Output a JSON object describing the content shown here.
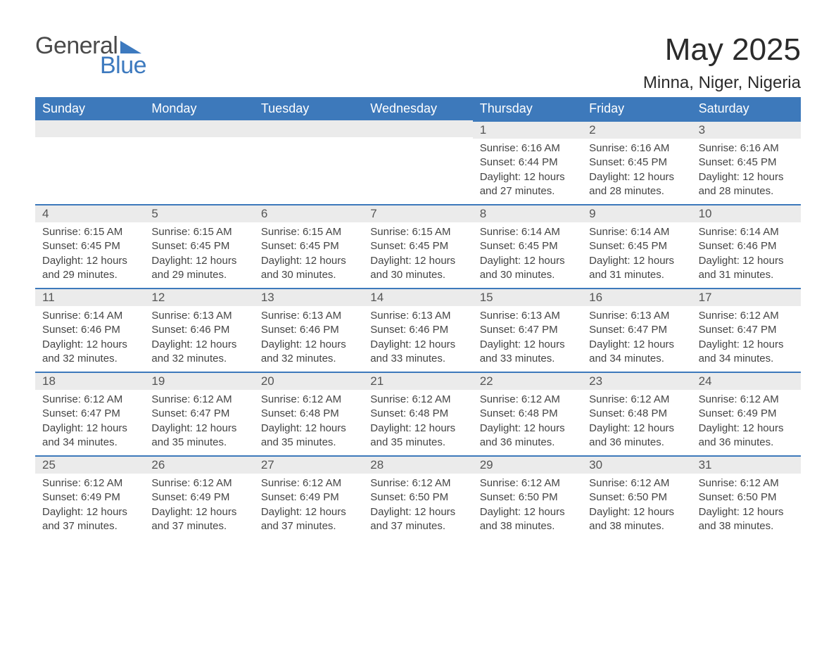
{
  "brand": {
    "word1": "General",
    "word2": "Blue"
  },
  "header": {
    "month_title": "May 2025",
    "location": "Minna, Niger, Nigeria"
  },
  "labels": {
    "sunrise_prefix": "Sunrise: ",
    "sunset_prefix": "Sunset: ",
    "daylight_prefix": "Daylight: ",
    "daylight_join": " and ",
    "daylight_suffix": "."
  },
  "styling": {
    "header_bg": "#3d79bb",
    "header_text": "#ffffff",
    "strip_bg": "#ebebeb",
    "accent_border": "#3d79bb",
    "body_text": "#444444",
    "daynum_text": "#555555",
    "title_text": "#2b2b2b",
    "font_family": "Arial",
    "columns": 7
  },
  "dow": [
    "Sunday",
    "Monday",
    "Tuesday",
    "Wednesday",
    "Thursday",
    "Friday",
    "Saturday"
  ],
  "weeks": [
    [
      null,
      null,
      null,
      null,
      {
        "n": "1",
        "sr": "6:16 AM",
        "ss": "6:44 PM",
        "dh": "12 hours",
        "dm": "27 minutes"
      },
      {
        "n": "2",
        "sr": "6:16 AM",
        "ss": "6:45 PM",
        "dh": "12 hours",
        "dm": "28 minutes"
      },
      {
        "n": "3",
        "sr": "6:16 AM",
        "ss": "6:45 PM",
        "dh": "12 hours",
        "dm": "28 minutes"
      }
    ],
    [
      {
        "n": "4",
        "sr": "6:15 AM",
        "ss": "6:45 PM",
        "dh": "12 hours",
        "dm": "29 minutes"
      },
      {
        "n": "5",
        "sr": "6:15 AM",
        "ss": "6:45 PM",
        "dh": "12 hours",
        "dm": "29 minutes"
      },
      {
        "n": "6",
        "sr": "6:15 AM",
        "ss": "6:45 PM",
        "dh": "12 hours",
        "dm": "30 minutes"
      },
      {
        "n": "7",
        "sr": "6:15 AM",
        "ss": "6:45 PM",
        "dh": "12 hours",
        "dm": "30 minutes"
      },
      {
        "n": "8",
        "sr": "6:14 AM",
        "ss": "6:45 PM",
        "dh": "12 hours",
        "dm": "30 minutes"
      },
      {
        "n": "9",
        "sr": "6:14 AM",
        "ss": "6:45 PM",
        "dh": "12 hours",
        "dm": "31 minutes"
      },
      {
        "n": "10",
        "sr": "6:14 AM",
        "ss": "6:46 PM",
        "dh": "12 hours",
        "dm": "31 minutes"
      }
    ],
    [
      {
        "n": "11",
        "sr": "6:14 AM",
        "ss": "6:46 PM",
        "dh": "12 hours",
        "dm": "32 minutes"
      },
      {
        "n": "12",
        "sr": "6:13 AM",
        "ss": "6:46 PM",
        "dh": "12 hours",
        "dm": "32 minutes"
      },
      {
        "n": "13",
        "sr": "6:13 AM",
        "ss": "6:46 PM",
        "dh": "12 hours",
        "dm": "32 minutes"
      },
      {
        "n": "14",
        "sr": "6:13 AM",
        "ss": "6:46 PM",
        "dh": "12 hours",
        "dm": "33 minutes"
      },
      {
        "n": "15",
        "sr": "6:13 AM",
        "ss": "6:47 PM",
        "dh": "12 hours",
        "dm": "33 minutes"
      },
      {
        "n": "16",
        "sr": "6:13 AM",
        "ss": "6:47 PM",
        "dh": "12 hours",
        "dm": "34 minutes"
      },
      {
        "n": "17",
        "sr": "6:12 AM",
        "ss": "6:47 PM",
        "dh": "12 hours",
        "dm": "34 minutes"
      }
    ],
    [
      {
        "n": "18",
        "sr": "6:12 AM",
        "ss": "6:47 PM",
        "dh": "12 hours",
        "dm": "34 minutes"
      },
      {
        "n": "19",
        "sr": "6:12 AM",
        "ss": "6:47 PM",
        "dh": "12 hours",
        "dm": "35 minutes"
      },
      {
        "n": "20",
        "sr": "6:12 AM",
        "ss": "6:48 PM",
        "dh": "12 hours",
        "dm": "35 minutes"
      },
      {
        "n": "21",
        "sr": "6:12 AM",
        "ss": "6:48 PM",
        "dh": "12 hours",
        "dm": "35 minutes"
      },
      {
        "n": "22",
        "sr": "6:12 AM",
        "ss": "6:48 PM",
        "dh": "12 hours",
        "dm": "36 minutes"
      },
      {
        "n": "23",
        "sr": "6:12 AM",
        "ss": "6:48 PM",
        "dh": "12 hours",
        "dm": "36 minutes"
      },
      {
        "n": "24",
        "sr": "6:12 AM",
        "ss": "6:49 PM",
        "dh": "12 hours",
        "dm": "36 minutes"
      }
    ],
    [
      {
        "n": "25",
        "sr": "6:12 AM",
        "ss": "6:49 PM",
        "dh": "12 hours",
        "dm": "37 minutes"
      },
      {
        "n": "26",
        "sr": "6:12 AM",
        "ss": "6:49 PM",
        "dh": "12 hours",
        "dm": "37 minutes"
      },
      {
        "n": "27",
        "sr": "6:12 AM",
        "ss": "6:49 PM",
        "dh": "12 hours",
        "dm": "37 minutes"
      },
      {
        "n": "28",
        "sr": "6:12 AM",
        "ss": "6:50 PM",
        "dh": "12 hours",
        "dm": "37 minutes"
      },
      {
        "n": "29",
        "sr": "6:12 AM",
        "ss": "6:50 PM",
        "dh": "12 hours",
        "dm": "38 minutes"
      },
      {
        "n": "30",
        "sr": "6:12 AM",
        "ss": "6:50 PM",
        "dh": "12 hours",
        "dm": "38 minutes"
      },
      {
        "n": "31",
        "sr": "6:12 AM",
        "ss": "6:50 PM",
        "dh": "12 hours",
        "dm": "38 minutes"
      }
    ]
  ]
}
